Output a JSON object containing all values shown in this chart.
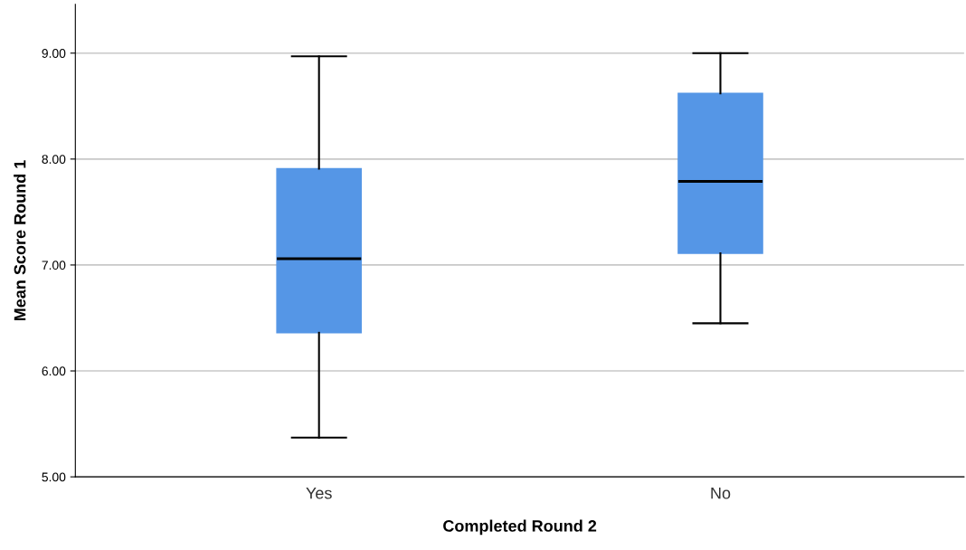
{
  "chart_data": {
    "type": "box",
    "xlabel": "Completed Round 2",
    "ylabel": "Mean Score Round 1",
    "categories": [
      "Yes",
      "No"
    ],
    "boxes": [
      {
        "low": 5.37,
        "q1": 6.36,
        "median": 7.06,
        "q3": 7.91,
        "high": 8.97
      },
      {
        "low": 6.45,
        "q1": 7.11,
        "median": 7.79,
        "q3": 8.62,
        "high": 9.0
      }
    ],
    "color": "#5596e6",
    "ylim": [
      5.0,
      9.46
    ],
    "yticks": [
      {
        "value": 5,
        "label": "5.00"
      },
      {
        "value": 6,
        "label": "6.00"
      },
      {
        "value": 7,
        "label": "7.00"
      },
      {
        "value": 8,
        "label": "8.00"
      },
      {
        "value": 9,
        "label": "9.00"
      }
    ],
    "grid": "y",
    "legend": false
  }
}
